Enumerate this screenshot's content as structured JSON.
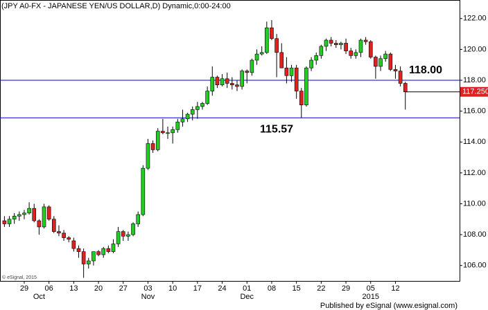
{
  "chart_data": {
    "type": "candlestick",
    "title": "(JPY A0-FX - JAPANESE YEN/US DOLLAR,D) Dynamic,0:00-24:00",
    "categories": [
      null,
      null,
      null,
      null,
      "29",
      null,
      null,
      null,
      null,
      "06",
      null,
      null,
      null,
      null,
      "13",
      null,
      null,
      null,
      null,
      "20",
      null,
      null,
      null,
      null,
      "27",
      null,
      null,
      null,
      null,
      "03",
      null,
      null,
      null,
      null,
      "10",
      null,
      null,
      null,
      null,
      "17",
      null,
      null,
      null,
      null,
      "24",
      null,
      null,
      null,
      null,
      "01",
      null,
      null,
      null,
      null,
      "08",
      null,
      null,
      null,
      null,
      "15",
      null,
      null,
      null,
      null,
      "22",
      null,
      null,
      null,
      null,
      "29",
      null,
      null,
      null,
      null,
      "05",
      null,
      null,
      null,
      null,
      "12",
      null,
      null
    ],
    "month_labels": [
      {
        "label": "Oct",
        "category": 7
      },
      {
        "label": "Nov",
        "category": 29
      },
      {
        "label": "Dec",
        "category": 49
      },
      {
        "label": "2015",
        "category": 74
      }
    ],
    "ohlc": [
      [
        108.9,
        109.2,
        108.5,
        108.7
      ],
      [
        108.7,
        109.2,
        108.5,
        109.0
      ],
      [
        109.0,
        109.4,
        108.7,
        109.2
      ],
      [
        109.2,
        109.5,
        108.9,
        109.3
      ],
      [
        109.3,
        109.6,
        109.0,
        109.4
      ],
      [
        109.4,
        110.1,
        109.3,
        109.7
      ],
      [
        109.7,
        110.0,
        108.8,
        108.9
      ],
      [
        108.9,
        109.0,
        108.0,
        108.5
      ],
      [
        108.5,
        110.0,
        108.4,
        109.8
      ],
      [
        109.8,
        109.9,
        108.9,
        109.0
      ],
      [
        109.0,
        109.2,
        108.1,
        108.2
      ],
      [
        108.2,
        108.6,
        107.9,
        108.1
      ],
      [
        108.1,
        108.3,
        107.6,
        107.8
      ],
      [
        107.8,
        107.9,
        107.5,
        107.7
      ],
      [
        107.6,
        107.8,
        106.9,
        107.1
      ],
      [
        107.1,
        107.3,
        106.5,
        106.9
      ],
      [
        106.9,
        107.1,
        105.2,
        106.1
      ],
      [
        106.1,
        106.5,
        105.8,
        106.3
      ],
      [
        106.3,
        106.9,
        106.0,
        106.9
      ],
      [
        106.9,
        107.0,
        106.6,
        106.7
      ],
      [
        106.7,
        107.2,
        106.5,
        107.1
      ],
      [
        107.1,
        107.3,
        106.8,
        106.9
      ],
      [
        106.9,
        107.7,
        106.8,
        107.4
      ],
      [
        107.4,
        108.5,
        107.2,
        108.2
      ],
      [
        108.2,
        108.3,
        107.6,
        107.9
      ],
      [
        107.9,
        108.2,
        107.6,
        108.0
      ],
      [
        108.0,
        108.8,
        107.9,
        108.7
      ],
      [
        108.7,
        109.5,
        108.5,
        109.3
      ],
      [
        109.3,
        112.5,
        109.2,
        112.3
      ],
      [
        112.3,
        114.2,
        112.2,
        113.9
      ],
      [
        113.9,
        114.1,
        113.3,
        113.5
      ],
      [
        113.5,
        114.9,
        113.4,
        114.7
      ],
      [
        114.7,
        115.5,
        114.5,
        114.6
      ],
      [
        114.6,
        115.0,
        114.2,
        114.6
      ],
      [
        114.6,
        115.0,
        113.9,
        114.8
      ],
      [
        114.8,
        115.5,
        114.6,
        115.3
      ],
      [
        115.3,
        116.1,
        115.0,
        115.5
      ],
      [
        115.5,
        115.9,
        115.3,
        115.8
      ],
      [
        115.8,
        116.3,
        115.4,
        116.1
      ],
      [
        116.1,
        116.6,
        115.5,
        116.3
      ],
      [
        116.3,
        116.6,
        116.1,
        116.5
      ],
      [
        116.5,
        117.6,
        116.4,
        117.3
      ],
      [
        117.3,
        118.9,
        117.0,
        118.2
      ],
      [
        118.2,
        118.3,
        117.5,
        117.7
      ],
      [
        117.7,
        118.4,
        117.6,
        118.1
      ],
      [
        118.1,
        118.5,
        117.5,
        117.8
      ],
      [
        117.8,
        118.2,
        117.4,
        117.7
      ],
      [
        117.7,
        118.0,
        117.3,
        117.6
      ],
      [
        117.6,
        118.7,
        117.4,
        118.6
      ],
      [
        118.6,
        118.7,
        117.8,
        118.5
      ],
      [
        118.5,
        119.4,
        118.3,
        119.3
      ],
      [
        119.3,
        120.0,
        119.0,
        119.7
      ],
      [
        119.7,
        120.2,
        119.6,
        119.8
      ],
      [
        119.8,
        121.8,
        119.7,
        121.4
      ],
      [
        121.4,
        121.9,
        120.6,
        120.7
      ],
      [
        120.7,
        121.0,
        118.2,
        119.8
      ],
      [
        119.8,
        120.4,
        118.8,
        118.8
      ],
      [
        118.8,
        119.5,
        117.8,
        118.3
      ],
      [
        118.3,
        119.0,
        117.9,
        118.8
      ],
      [
        118.8,
        119.0,
        116.8,
        117.3
      ],
      [
        117.3,
        117.5,
        115.57,
        116.4
      ],
      [
        116.4,
        118.9,
        116.3,
        118.8
      ],
      [
        118.8,
        119.5,
        118.6,
        119.3
      ],
      [
        119.3,
        119.8,
        119.0,
        119.6
      ],
      [
        119.6,
        120.3,
        119.4,
        120.2
      ],
      [
        120.2,
        120.7,
        119.9,
        120.6
      ],
      [
        120.6,
        120.8,
        120.2,
        120.4
      ],
      [
        120.4,
        120.6,
        120.1,
        120.3
      ],
      [
        120.3,
        120.5,
        120.0,
        120.4
      ],
      [
        120.4,
        120.7,
        119.7,
        119.9
      ],
      [
        119.9,
        120.1,
        119.4,
        119.6
      ],
      [
        119.6,
        120.0,
        119.4,
        119.8
      ],
      [
        119.8,
        120.7,
        119.5,
        120.6
      ],
      [
        120.6,
        120.8,
        120.3,
        120.5
      ],
      [
        120.5,
        120.6,
        119.4,
        119.5
      ],
      [
        119.5,
        119.6,
        118.1,
        118.9
      ],
      [
        118.9,
        119.6,
        118.6,
        119.4
      ],
      [
        119.4,
        119.9,
        119.2,
        119.7
      ],
      [
        119.7,
        119.8,
        118.6,
        118.7
      ],
      [
        118.7,
        119.0,
        118.1,
        118.6
      ],
      [
        118.6,
        118.9,
        117.6,
        117.8
      ],
      [
        117.8,
        117.9,
        116.1,
        117.25
      ]
    ],
    "up_color": "#22cc22",
    "down_color": "#dd2222",
    "ylim": [
      105,
      123.2
    ],
    "yticks": [
      {
        "value": 106,
        "label": "106.00"
      },
      {
        "value": 108,
        "label": "108.00"
      },
      {
        "value": 110,
        "label": "110.00"
      },
      {
        "value": 112,
        "label": "112.00"
      },
      {
        "value": 114,
        "label": "114.00"
      },
      {
        "value": 116,
        "label": "116.00"
      },
      {
        "value": 118,
        "label": "118.00"
      },
      {
        "value": 120,
        "label": "120.00"
      },
      {
        "value": 122,
        "label": "122.00"
      }
    ],
    "levels": [
      {
        "value": 118,
        "label": "118.00",
        "color": "#0000cc"
      },
      {
        "value": 115.57,
        "label": "115.57",
        "color": "#0000cc"
      }
    ],
    "last_price": {
      "value": 117.25,
      "label": "117.250",
      "color": "#dd2222"
    },
    "watermark": "© eSignal, 2015",
    "footer": "Published by eSignal (www.esignal.com)"
  }
}
